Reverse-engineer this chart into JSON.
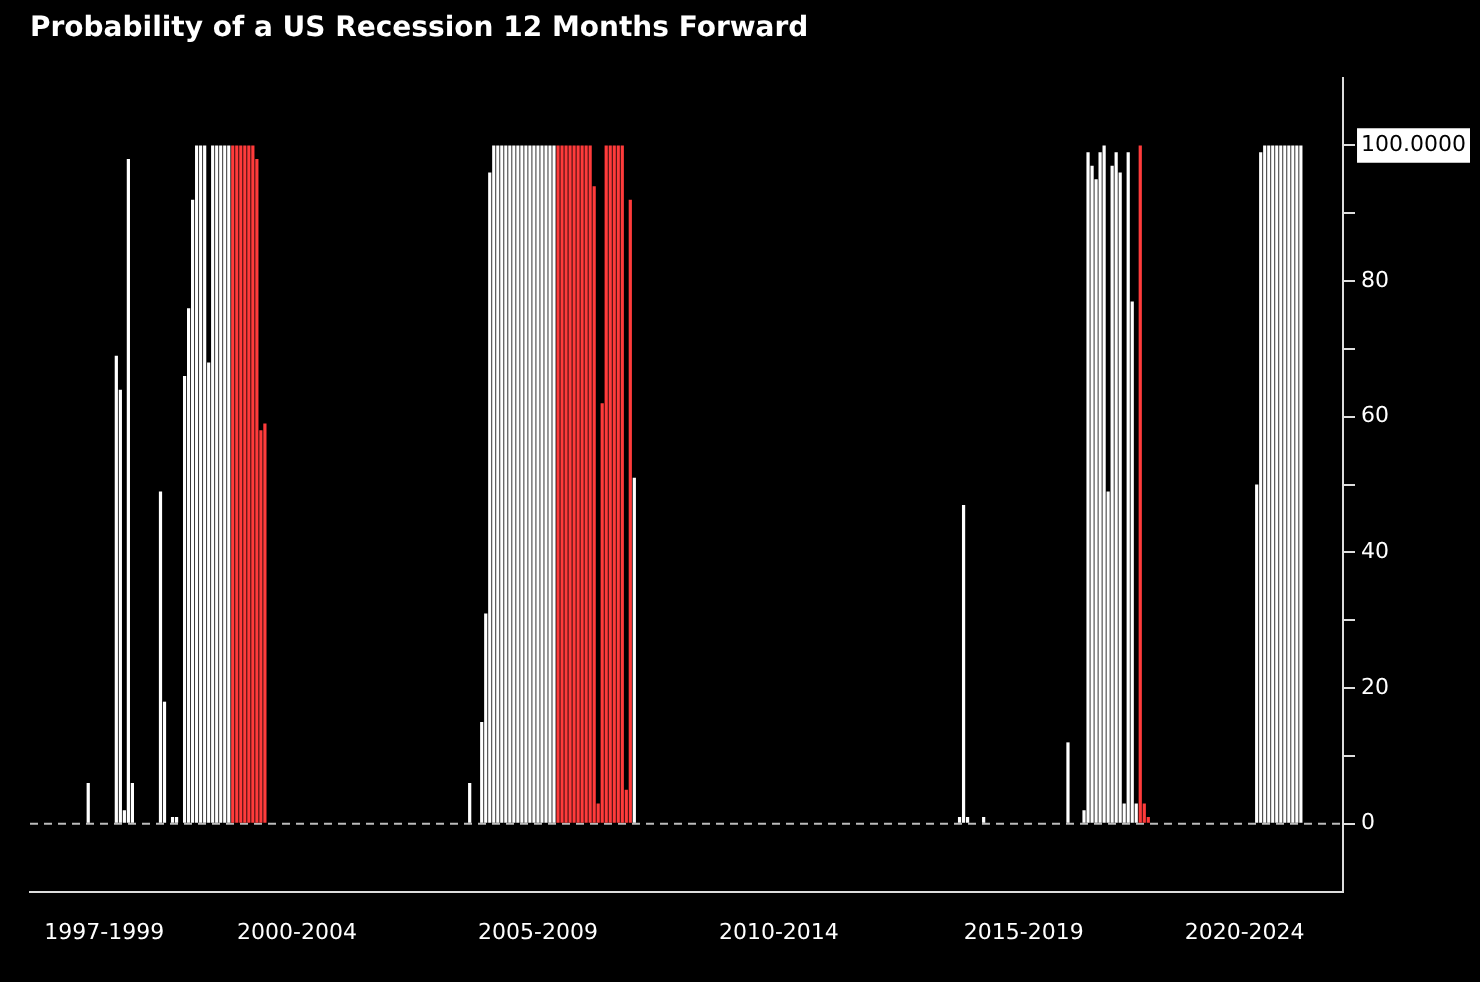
{
  "chart_data": {
    "type": "bar",
    "title": "Probability of a US Recession 12 Months Forward",
    "categories": [
      null,
      null,
      null,
      null,
      null,
      null,
      null,
      null,
      null,
      null,
      null,
      null,
      null,
      null,
      null,
      null,
      null,
      null,
      "1997-1999",
      null,
      null,
      null,
      null,
      null,
      null,
      null,
      null,
      null,
      null,
      null,
      null,
      null,
      null,
      null,
      null,
      null,
      null,
      null,
      null,
      null,
      null,
      null,
      null,
      null,
      null,
      null,
      null,
      null,
      null,
      null,
      null,
      null,
      null,
      null,
      null,
      null,
      null,
      null,
      null,
      null,
      null,
      null,
      null,
      null,
      null,
      null,
      "2000-2004",
      null,
      null,
      null,
      null,
      null,
      null,
      null,
      null,
      null,
      null,
      null,
      null,
      null,
      null,
      null,
      null,
      null,
      null,
      null,
      null,
      null,
      null,
      null,
      null,
      null,
      null,
      null,
      null,
      null,
      null,
      null,
      null,
      null,
      null,
      null,
      null,
      null,
      null,
      null,
      null,
      null,
      null,
      null,
      null,
      null,
      null,
      null,
      null,
      null,
      null,
      null,
      null,
      null,
      null,
      null,
      null,
      null,
      null,
      null,
      "2005-2009",
      null,
      null,
      null,
      null,
      null,
      null,
      null,
      null,
      null,
      null,
      null,
      null,
      null,
      null,
      null,
      null,
      null,
      null,
      null,
      null,
      null,
      null,
      null,
      null,
      null,
      null,
      null,
      null,
      null,
      null,
      null,
      null,
      null,
      null,
      null,
      null,
      null,
      null,
      null,
      null,
      null,
      null,
      null,
      null,
      null,
      null,
      null,
      null,
      null,
      null,
      null,
      null,
      null,
      null,
      null,
      null,
      null,
      null,
      null,
      "2010-2014",
      null,
      null,
      null,
      null,
      null,
      null,
      null,
      null,
      null,
      null,
      null,
      null,
      null,
      null,
      null,
      null,
      null,
      null,
      null,
      null,
      null,
      null,
      null,
      null,
      null,
      null,
      null,
      null,
      null,
      null,
      null,
      null,
      null,
      null,
      null,
      null,
      null,
      null,
      null,
      null,
      null,
      null,
      null,
      null,
      null,
      null,
      null,
      null,
      null,
      null,
      null,
      null,
      null,
      null,
      null,
      null,
      null,
      null,
      null,
      null,
      "2015-2019",
      null,
      null,
      null,
      null,
      null,
      null,
      null,
      null,
      null,
      null,
      null,
      null,
      null,
      null,
      null,
      null,
      null,
      null,
      null,
      null,
      null,
      null,
      null,
      null,
      null,
      null,
      null,
      null,
      null,
      null,
      null,
      null,
      null,
      null,
      null,
      null,
      null,
      null,
      null,
      null,
      null,
      null,
      null,
      null,
      null,
      null,
      null,
      null,
      null,
      null,
      null,
      null,
      null,
      null,
      "2020-2024",
      null,
      null,
      null,
      null,
      null,
      null,
      null,
      null,
      null,
      null,
      null,
      null,
      null,
      null,
      null,
      null,
      null,
      null,
      null,
      null,
      null,
      null,
      null,
      null
    ],
    "values": [
      0,
      0,
      0,
      0,
      0,
      0,
      0,
      0,
      0,
      0,
      0,
      0,
      0,
      0,
      6,
      0,
      0,
      0,
      0,
      0,
      0,
      69,
      64,
      2,
      98,
      6,
      0,
      0,
      0,
      0,
      0,
      0,
      49,
      18,
      0,
      1,
      1,
      0,
      66,
      76,
      92,
      100,
      100,
      100,
      68,
      100,
      100,
      100,
      100,
      100,
      100,
      100,
      100,
      100,
      100,
      100,
      98,
      58,
      59,
      0,
      0,
      0,
      0,
      0,
      0,
      0,
      0,
      0,
      0,
      0,
      0,
      0,
      0,
      0,
      0,
      0,
      0,
      0,
      0,
      0,
      0,
      0,
      0,
      0,
      0,
      0,
      0,
      0,
      0,
      0,
      0,
      0,
      0,
      0,
      0,
      0,
      0,
      0,
      0,
      0,
      0,
      0,
      0,
      0,
      0,
      0,
      0,
      0,
      0,
      6,
      0,
      0,
      15,
      31,
      96,
      100,
      100,
      100,
      100,
      100,
      100,
      100,
      100,
      100,
      100,
      100,
      100,
      100,
      100,
      100,
      100,
      100,
      100,
      100,
      100,
      100,
      100,
      100,
      100,
      100,
      94,
      3,
      62,
      100,
      100,
      100,
      100,
      100,
      5,
      92,
      51,
      0,
      0,
      0,
      0,
      0,
      0,
      0,
      0,
      0,
      0,
      0,
      0,
      0,
      0,
      0,
      0,
      0,
      0,
      0,
      0,
      0,
      0,
      0,
      0,
      0,
      0,
      0,
      0,
      0,
      0,
      0,
      0,
      0,
      0,
      0,
      0,
      0,
      0,
      0,
      0,
      0,
      0,
      0,
      0,
      0,
      0,
      0,
      0,
      0,
      0,
      0,
      0,
      0,
      0,
      0,
      0,
      0,
      0,
      0,
      0,
      0,
      0,
      0,
      0,
      0,
      0,
      0,
      0,
      0,
      0,
      0,
      0,
      0,
      0,
      0,
      0,
      0,
      0,
      0,
      0,
      1,
      47,
      1,
      0,
      0,
      0,
      1,
      0,
      0,
      0,
      0,
      0,
      0,
      0,
      0,
      0,
      0,
      0,
      0,
      0,
      0,
      0,
      0,
      0,
      0,
      0,
      0,
      12,
      0,
      0,
      0,
      2,
      99,
      97,
      95,
      99,
      100,
      49,
      97,
      99,
      96,
      3,
      99,
      77,
      3,
      100,
      3,
      1,
      0,
      0,
      0,
      0,
      0,
      0,
      0,
      0,
      0,
      0,
      0,
      0,
      0,
      0,
      0,
      0,
      0,
      0,
      0,
      0,
      0,
      0,
      0,
      0,
      0,
      0,
      50,
      99,
      100,
      100,
      100,
      100,
      100,
      100,
      100,
      100,
      100,
      100,
      null,
      null,
      null,
      null,
      null,
      null,
      null,
      null,
      null,
      null
    ],
    "colors": [
      "#ffffff",
      "#ffffff",
      "#ffffff",
      "#ffffff",
      "#ffffff",
      "#ffffff",
      "#ffffff",
      "#ffffff",
      "#ffffff",
      "#ffffff",
      "#ffffff",
      "#ffffff",
      "#ffffff",
      "#ffffff",
      "#ffffff",
      "#ffffff",
      "#ffffff",
      "#ffffff",
      "#ffffff",
      "#ffffff",
      "#ffffff",
      "#ffffff",
      "#ffffff",
      "#ffffff",
      "#ffffff",
      "#ffffff",
      "#ffffff",
      "#ffffff",
      "#ffffff",
      "#ffffff",
      "#ffffff",
      "#ffffff",
      "#ffffff",
      "#ffffff",
      "#ffffff",
      "#ffffff",
      "#ffffff",
      "#ffffff",
      "#ffffff",
      "#ffffff",
      "#ffffff",
      "#ffffff",
      "#ffffff",
      "#ffffff",
      "#ffffff",
      "#ffffff",
      "#ffffff",
      "#ffffff",
      "#ffffff",
      "#ffffff",
      "#ff3b3b",
      "#ff3b3b",
      "#ff3b3b",
      "#ff3b3b",
      "#ff3b3b",
      "#ff3b3b",
      "#ff3b3b",
      "#ff3b3b",
      "#ff3b3b",
      "#ffffff",
      "#ffffff",
      "#ffffff",
      "#ffffff",
      "#ffffff",
      "#ffffff",
      "#ffffff",
      "#ffffff",
      "#ffffff",
      "#ffffff",
      "#ffffff",
      "#ffffff",
      "#ffffff",
      "#ffffff",
      "#ffffff",
      "#ffffff",
      "#ffffff",
      "#ffffff",
      "#ffffff",
      "#ffffff",
      "#ffffff",
      "#ffffff",
      "#ffffff",
      "#ffffff",
      "#ffffff",
      "#ffffff",
      "#ffffff",
      "#ffffff",
      "#ffffff",
      "#ffffff",
      "#ffffff",
      "#ffffff",
      "#ffffff",
      "#ffffff",
      "#ffffff",
      "#ffffff",
      "#ffffff",
      "#ffffff",
      "#ffffff",
      "#ffffff",
      "#ffffff",
      "#ffffff",
      "#ffffff",
      "#ffffff",
      "#ffffff",
      "#ffffff",
      "#ffffff",
      "#ffffff",
      "#ffffff",
      "#ffffff",
      "#ffffff",
      "#ffffff",
      "#ffffff",
      "#ffffff",
      "#ffffff",
      "#ffffff",
      "#ffffff",
      "#ffffff",
      "#ffffff",
      "#ffffff",
      "#ffffff",
      "#ffffff",
      "#ffffff",
      "#ffffff",
      "#ffffff",
      "#ffffff",
      "#ffffff",
      "#ffffff",
      "#ffffff",
      "#ffffff",
      "#ffffff",
      "#ffffff",
      "#ff3b3b",
      "#ff3b3b",
      "#ff3b3b",
      "#ff3b3b",
      "#ff3b3b",
      "#ff3b3b",
      "#ff3b3b",
      "#ff3b3b",
      "#ff3b3b",
      "#ff3b3b",
      "#ff3b3b",
      "#ff3b3b",
      "#ff3b3b",
      "#ff3b3b",
      "#ff3b3b",
      "#ff3b3b",
      "#ff3b3b",
      "#ff3b3b",
      "#ff3b3b",
      "#ffffff",
      "#ffffff",
      "#ffffff",
      "#ffffff",
      "#ffffff",
      "#ffffff",
      "#ffffff",
      "#ffffff",
      "#ffffff",
      "#ffffff",
      "#ffffff",
      "#ffffff",
      "#ffffff",
      "#ffffff",
      "#ffffff",
      "#ffffff",
      "#ffffff",
      "#ffffff",
      "#ffffff",
      "#ffffff",
      "#ffffff",
      "#ffffff",
      "#ffffff",
      "#ffffff",
      "#ffffff",
      "#ffffff",
      "#ffffff",
      "#ffffff",
      "#ffffff",
      "#ffffff",
      "#ffffff",
      "#ffffff",
      "#ffffff",
      "#ffffff",
      "#ffffff",
      "#ffffff",
      "#ffffff",
      "#ffffff",
      "#ffffff",
      "#ffffff",
      "#ffffff",
      "#ffffff",
      "#ffffff",
      "#ffffff",
      "#ffffff",
      "#ffffff",
      "#ffffff",
      "#ffffff",
      "#ffffff",
      "#ffffff",
      "#ffffff",
      "#ffffff",
      "#ffffff",
      "#ffffff",
      "#ffffff",
      "#ffffff",
      "#ffffff",
      "#ffffff",
      "#ffffff",
      "#ffffff",
      "#ffffff",
      "#ffffff",
      "#ffffff",
      "#ffffff",
      "#ffffff",
      "#ffffff",
      "#ffffff",
      "#ffffff",
      "#ffffff",
      "#ffffff",
      "#ffffff",
      "#ffffff",
      "#ffffff",
      "#ffffff",
      "#ffffff",
      "#ffffff",
      "#ffffff",
      "#ffffff",
      "#ffffff",
      "#ffffff",
      "#ffffff",
      "#ffffff",
      "#ffffff",
      "#ffffff",
      "#ffffff",
      "#ffffff",
      "#ffffff",
      "#ffffff",
      "#ffffff",
      "#ffffff",
      "#ffffff",
      "#ffffff",
      "#ffffff",
      "#ffffff",
      "#ffffff",
      "#ffffff",
      "#ffffff",
      "#ffffff",
      "#ffffff",
      "#ffffff",
      "#ffffff",
      "#ffffff",
      "#ffffff",
      "#ffffff",
      "#ffffff",
      "#ffffff",
      "#ffffff",
      "#ffffff",
      "#ffffff",
      "#ffffff",
      "#ffffff",
      "#ffffff",
      "#ffffff",
      "#ffffff",
      "#ffffff",
      "#ffffff",
      "#ffffff",
      "#ffffff",
      "#ffffff",
      "#ffffff",
      "#ffffff",
      "#ffffff",
      "#ffffff",
      "#ffffff",
      "#ffffff",
      "#ffffff",
      "#ff3b3b",
      "#ff3b3b",
      "#ff3b3b",
      "#ffffff",
      "#ffffff",
      "#ffffff",
      "#ffffff",
      "#ffffff",
      "#ffffff",
      "#ffffff",
      "#ffffff",
      "#ffffff",
      "#ffffff",
      "#ffffff",
      "#ffffff",
      "#ffffff",
      "#ffffff",
      "#ffffff",
      "#ffffff",
      "#ffffff",
      "#ffffff",
      "#ffffff",
      "#ffffff",
      "#ffffff",
      "#ffffff",
      "#ffffff",
      "#ffffff",
      "#ffffff",
      "#ffffff",
      "#ffffff",
      "#ffffff",
      "#ffffff",
      "#ffffff",
      "#ffffff",
      "#ffffff",
      "#ffffff",
      "#ffffff",
      "#ffffff",
      "#ffffff",
      "#ffffff",
      "#ffffff",
      "#ffffff",
      "#ffffff",
      "#ffffff",
      "#ffffff",
      "#ffffff",
      "#ffffff",
      "#ffffff",
      "#ffffff",
      "#ffffff",
      "#ffffff"
    ],
    "ylim": [
      -10,
      110
    ],
    "yticks": [
      0,
      {
        "value": 10,
        "label": null
      },
      20,
      {
        "value": 30,
        "label": null
      },
      40,
      {
        "value": 50,
        "label": null
      },
      60,
      {
        "value": 70,
        "label": null
      },
      80,
      {
        "value": 90,
        "label": null
      },
      {
        "value": 100,
        "label": "100.0000"
      }
    ],
    "ref_lines": [
      {
        "axis": "y",
        "value": 0,
        "color": "#bbbbbb",
        "line_style": "dashed"
      }
    ],
    "grid": false,
    "legend": false
  }
}
